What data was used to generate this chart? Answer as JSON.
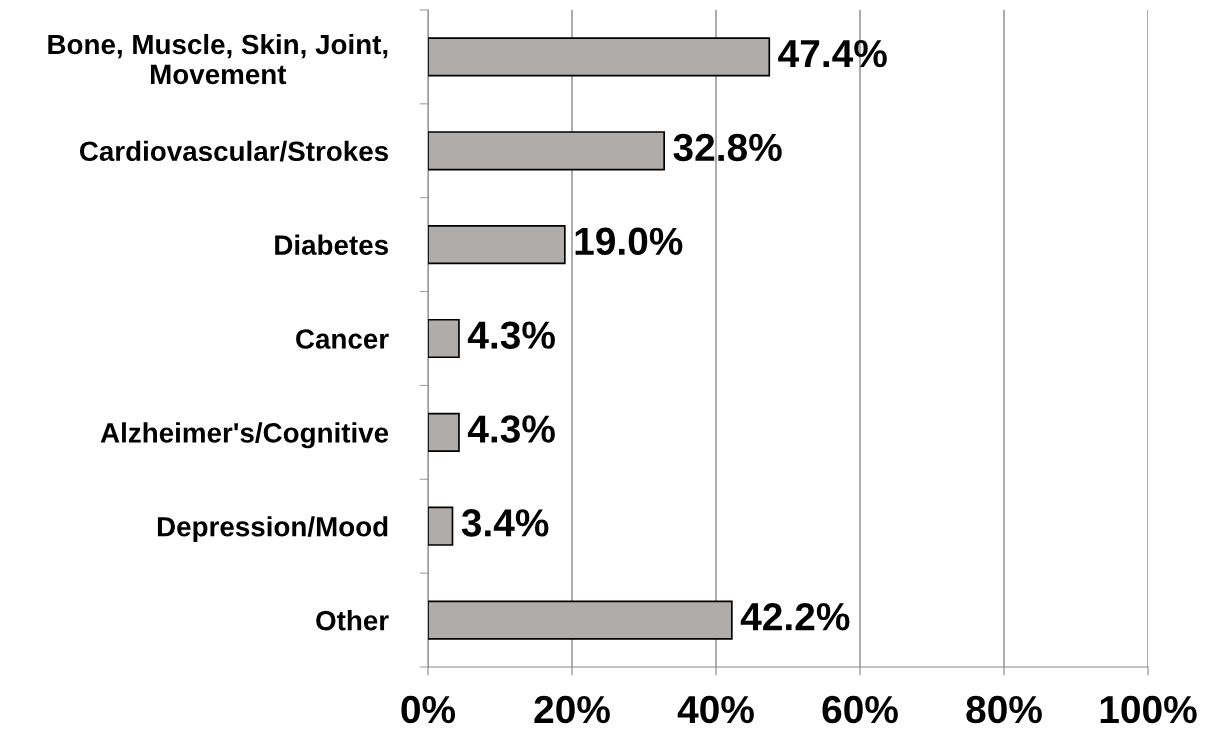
{
  "chart_data": {
    "type": "bar",
    "orientation": "horizontal",
    "categories": [
      "Bone, Muscle, Skin, Joint,\nMovement",
      "Cardiovascular/Strokes",
      "Diabetes",
      "Cancer",
      "Alzheimer's/Cognitive",
      "Depression/Mood",
      "Other"
    ],
    "values": [
      47.4,
      32.8,
      19.0,
      4.3,
      4.3,
      3.4,
      42.2
    ],
    "value_labels": [
      "47.4%",
      "32.8%",
      "19.0%",
      "4.3%",
      "4.3%",
      "3.4%",
      "42.2%"
    ],
    "color": "#b0acaa",
    "xlim": [
      0,
      100
    ],
    "xticks": [
      {
        "value": 0,
        "label": "0%"
      },
      {
        "value": 20,
        "label": "20%"
      },
      {
        "value": 40,
        "label": "40%"
      },
      {
        "value": 60,
        "label": "60%"
      },
      {
        "value": 80,
        "label": "80%"
      },
      {
        "value": 100,
        "label": "100%"
      }
    ],
    "grid": "x",
    "legend": false
  }
}
